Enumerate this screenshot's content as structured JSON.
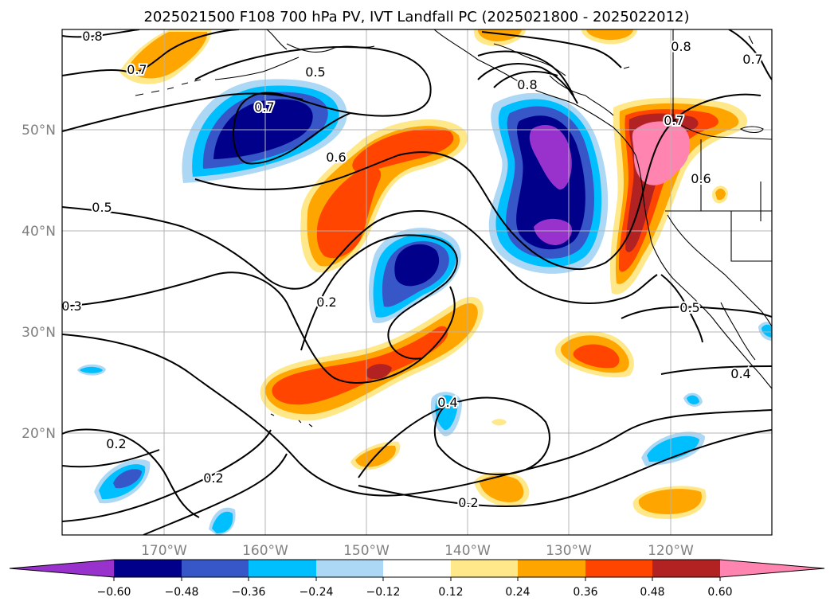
{
  "title": "2025021500 F108 700 hPa PV, IVT Landfall PC (2025021800 - 2025022012)",
  "map": {
    "lon_range": [
      -180,
      -110
    ],
    "lat_range": [
      10,
      60
    ],
    "lat_ticks": [
      "50°N",
      "40°N",
      "30°N",
      "20°N"
    ],
    "lon_ticks": [
      "170°W",
      "160°W",
      "150°W",
      "140°W",
      "130°W",
      "120°W"
    ],
    "grid": true,
    "contour_labels": [
      "0.8",
      "0.7",
      "0.5",
      "0.7",
      "0.6",
      "0.5",
      "0.3",
      "0.2",
      "0.8",
      "0.7",
      "0.6",
      "0.8",
      "0.7",
      "0.5",
      "0.4",
      "0.4",
      "0.2",
      "0.2",
      "0.2"
    ]
  },
  "colorbar": {
    "ticks": [
      "−0.60",
      "−0.48",
      "−0.36",
      "−0.24",
      "−0.12",
      "0.12",
      "0.24",
      "0.36",
      "0.48",
      "0.60"
    ],
    "colors": [
      "#9932cc",
      "#00008b",
      "#3757c9",
      "#00bfff",
      "#add8f5",
      "#ffffff",
      "#ffe88a",
      "#ffa500",
      "#ff4500",
      "#b22222",
      "#ff85b0"
    ]
  }
}
